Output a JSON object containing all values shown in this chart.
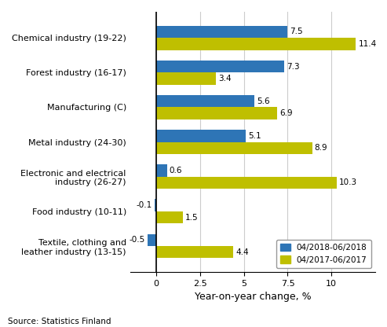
{
  "categories": [
    "Textile, clothing and\nleather industry (13-15)",
    "Food industry (10-11)",
    "Electronic and electrical\nindustry (26-27)",
    "Metal industry (24-30)",
    "Manufacturing (C)",
    "Forest industry (16-17)",
    "Chemical industry (19-22)"
  ],
  "series_2018": [
    -0.5,
    -0.1,
    0.6,
    5.1,
    5.6,
    7.3,
    7.5
  ],
  "series_2017": [
    4.4,
    1.5,
    10.3,
    8.9,
    6.9,
    3.4,
    11.4
  ],
  "color_2018": "#2E75B6",
  "color_2017": "#BFBF00",
  "legend_2018": "04/2018-06/2018",
  "legend_2017": "04/2017-06/2017",
  "xlabel": "Year-on-year change, %",
  "xlim": [
    -1.5,
    12.5
  ],
  "xticks": [
    0.0,
    2.5,
    5.0,
    7.5,
    10.0
  ],
  "source": "Source: Statistics Finland",
  "bar_height": 0.35,
  "annotation_fontsize": 7.5,
  "label_fontsize": 8.0,
  "xlabel_fontsize": 9,
  "grid_color": "#CCCCCC"
}
